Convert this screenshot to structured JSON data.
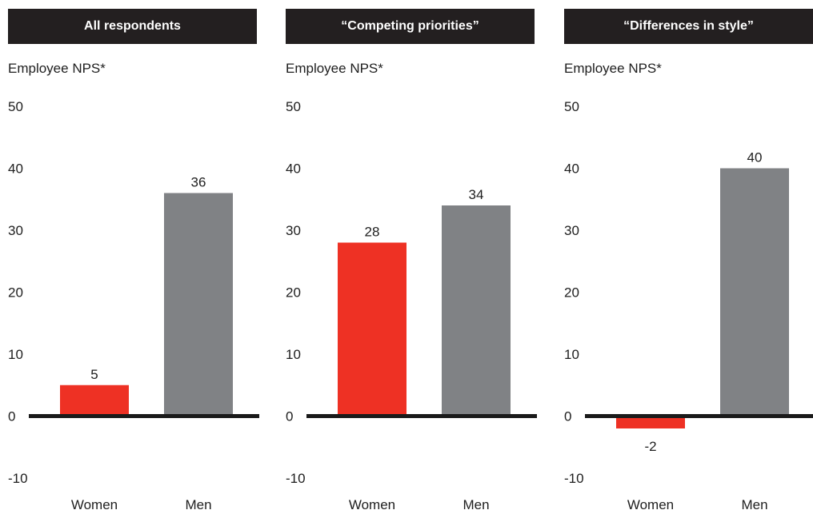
{
  "chart_data": [
    {
      "type": "bar",
      "title": "All respondents",
      "ylabel": "Employee NPS*",
      "ylim": [
        -10,
        50
      ],
      "yticks": [
        50,
        40,
        30,
        20,
        10,
        0,
        -10
      ],
      "categories": [
        "Women",
        "Men"
      ],
      "values": [
        5,
        36
      ],
      "value_labels": [
        "5",
        "36"
      ],
      "colors": [
        "#ee3124",
        "#808285"
      ],
      "grid": false
    },
    {
      "type": "bar",
      "title": "“Competing priorities”",
      "ylabel": "Employee NPS*",
      "ylim": [
        -10,
        50
      ],
      "yticks": [
        50,
        40,
        30,
        20,
        10,
        0,
        -10
      ],
      "categories": [
        "Women",
        "Men"
      ],
      "values": [
        28,
        34
      ],
      "value_labels": [
        "28",
        "34"
      ],
      "colors": [
        "#ee3124",
        "#808285"
      ],
      "grid": false
    },
    {
      "type": "bar",
      "title": "“Differences in style”",
      "ylabel": "Employee NPS*",
      "ylim": [
        -10,
        50
      ],
      "yticks": [
        50,
        40,
        30,
        20,
        10,
        0,
        -10
      ],
      "categories": [
        "Women",
        "Men"
      ],
      "values": [
        -2,
        40
      ],
      "value_labels": [
        "-2",
        "40"
      ],
      "colors": [
        "#ee3124",
        "#808285"
      ],
      "grid": false
    }
  ]
}
